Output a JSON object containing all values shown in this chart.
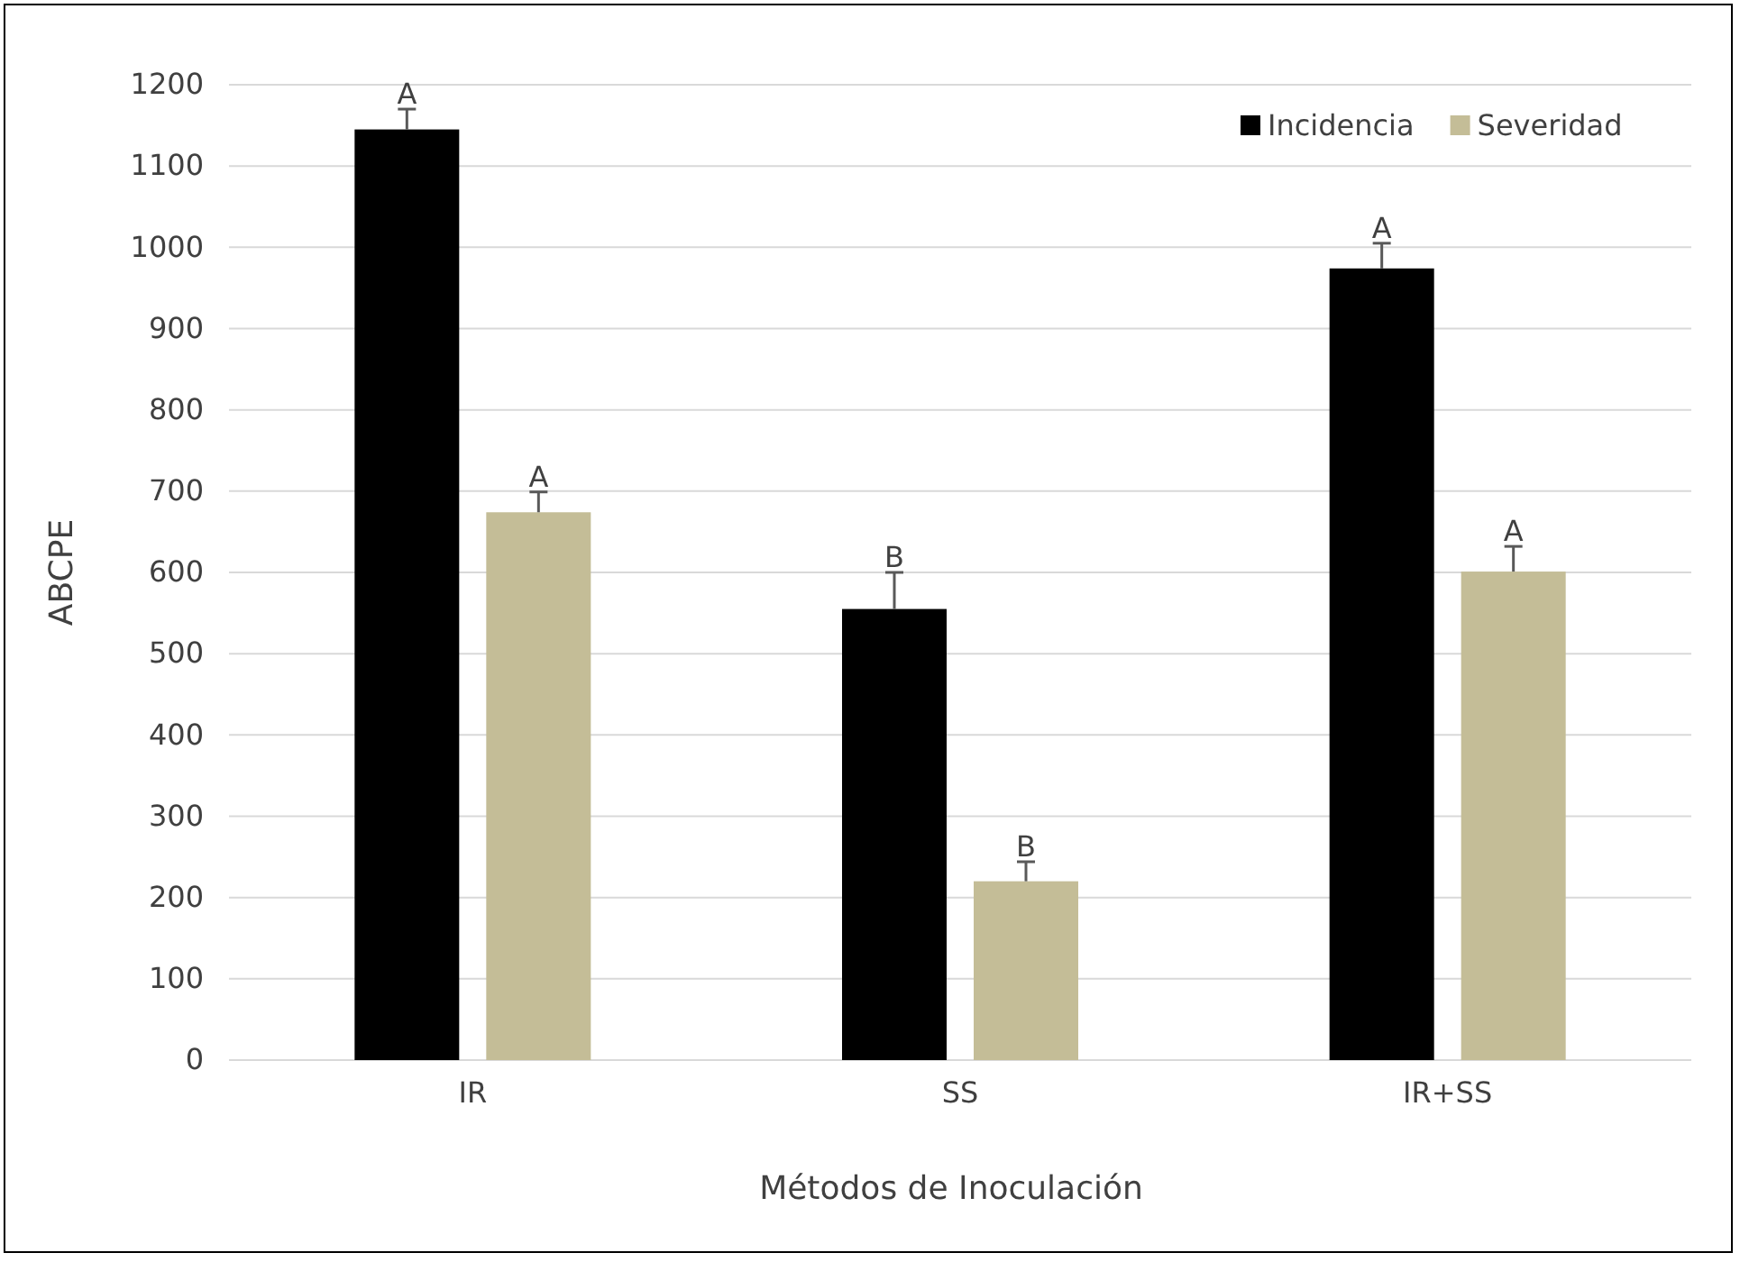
{
  "chart_data": {
    "type": "bar",
    "xlabel": "Métodos de Inoculación",
    "ylabel": "ABCPE",
    "categories": [
      "IR",
      "SS",
      "IR+SS"
    ],
    "series": [
      {
        "name": "Incidencia",
        "color": "#000000",
        "values": [
          1145,
          555,
          974
        ],
        "errors": [
          [
            1145,
            1170
          ],
          [
            555,
            600
          ],
          [
            974,
            1005
          ]
        ],
        "value_labels": [
          "A",
          "B",
          "A"
        ]
      },
      {
        "name": "Severidad",
        "color": "#c4bd97",
        "values": [
          674,
          220,
          601
        ],
        "errors": [
          [
            674,
            699
          ],
          [
            220,
            244
          ],
          [
            601,
            632
          ]
        ],
        "value_labels": [
          "A",
          "B",
          "A"
        ]
      }
    ],
    "ylim": [
      0,
      1200
    ],
    "yticks": [
      0,
      100,
      200,
      300,
      400,
      500,
      600,
      700,
      800,
      900,
      1000,
      1100,
      1200
    ],
    "grid": "y",
    "legend": "top right"
  }
}
